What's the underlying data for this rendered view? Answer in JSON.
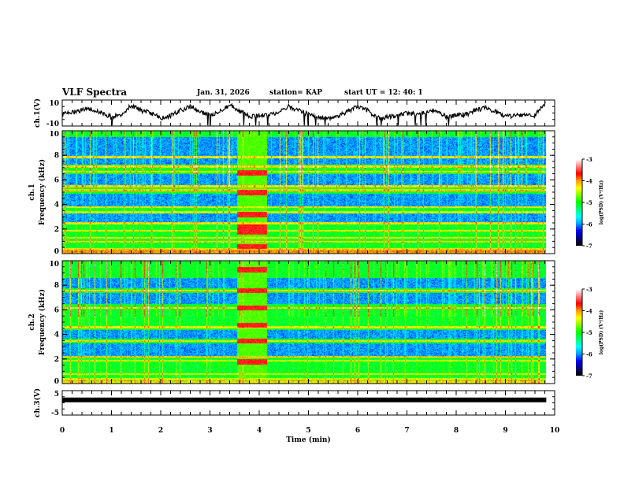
{
  "header": {
    "title": "VLF Spectra",
    "date": "Jan. 31, 2026",
    "station": "station= KAP",
    "start_time": "start  UT =   12: 40: 1"
  },
  "chart_data": [
    {
      "type": "line",
      "name": "ch1-voltage",
      "ylabel": "ch.1(V)",
      "ylim": [
        -10,
        10
      ],
      "yticks": [
        "10",
        "-10"
      ],
      "xlim": [
        0,
        10
      ],
      "data_end_min": 9.83,
      "description": "Noisy waveform oscillating mostly between about -7 and +7 V with periodic bursts",
      "approx_values": {
        "x": [
          0,
          0.3,
          0.5,
          0.8,
          1.0,
          1.2,
          1.4,
          1.6,
          1.8,
          2.0,
          2.2,
          2.4,
          2.6,
          2.8,
          3.0,
          3.2,
          3.4,
          3.6,
          3.8,
          4.0,
          4.2,
          4.4,
          4.6,
          4.8,
          5.0,
          5.2,
          5.4,
          5.6,
          5.8,
          6.0,
          6.2,
          6.4,
          6.6,
          6.8,
          7.0,
          7.2,
          7.4,
          7.6,
          7.8,
          8.0,
          8.2,
          8.4,
          8.6,
          8.8,
          9.0,
          9.2,
          9.4,
          9.6,
          9.8
        ],
        "y": [
          -1,
          1,
          4,
          0,
          -3,
          -1,
          6,
          2,
          0,
          -4,
          -2,
          2,
          5,
          1,
          -2,
          2,
          6,
          2,
          -3,
          -2,
          -1,
          1,
          5,
          2,
          -1,
          -3,
          -4,
          -2,
          1,
          5,
          2,
          -4,
          -3,
          -2,
          0,
          -1,
          1,
          2,
          -3,
          -2,
          -1,
          2,
          4,
          1,
          -3,
          -2,
          -1,
          -2,
          7
        ]
      }
    },
    {
      "type": "heatmap",
      "name": "ch1-spectrogram",
      "ylabel_line1": "ch.1",
      "ylabel_line2": "Frequency (kHz)",
      "ylim": [
        0,
        10
      ],
      "yticks": [
        "0",
        "2",
        "4",
        "6",
        "8",
        "10"
      ],
      "xlim": [
        0,
        10
      ],
      "data_end_min": 9.83,
      "colorbar": {
        "label": "log(PSD) (V²/Hz)",
        "range": [
          -7,
          -3
        ],
        "ticks": [
          "-3",
          "-4",
          "-5",
          "-6",
          "-7"
        ]
      },
      "features": {
        "burst_interval_min": [
          3.55,
          4.15
        ],
        "burst_bands_khz": [
          0.6,
          1.8,
          2.2,
          3.2,
          5.0,
          6.6
        ],
        "persistent_bands_khz": [
          0.3,
          1.0,
          1.3,
          1.9,
          2.5,
          3.4,
          3.8,
          5.2,
          5.5,
          6.7,
          7.1,
          7.9
        ],
        "quiet_bands_khz": [
          [
            2.6,
            3.3
          ],
          [
            3.9,
            4.9
          ],
          [
            5.6,
            6.5
          ],
          [
            7.3,
            7.8
          ],
          [
            8.0,
            9.5
          ]
        ]
      }
    },
    {
      "type": "heatmap",
      "name": "ch2-spectrogram",
      "ylabel_line1": "ch.2",
      "ylabel_line2": "Frequency (kHz)",
      "ylim": [
        0,
        10
      ],
      "yticks": [
        "0",
        "2",
        "4",
        "6",
        "8",
        "10"
      ],
      "xlim": [
        0,
        10
      ],
      "data_end_min": 9.83,
      "colorbar": {
        "label": "log(PSD) (V²/Hz)",
        "range": [
          -7,
          -3
        ],
        "ticks": [
          "-3",
          "-4",
          "-5",
          "-6",
          "-7"
        ]
      },
      "features": {
        "burst_interval_min": [
          3.55,
          4.15
        ],
        "burst_bands_khz": [
          1.8,
          3.5,
          4.8,
          6.2,
          7.6,
          9.3
        ],
        "persistent_bands_khz": [
          0.3,
          0.8,
          1.9,
          2.2,
          3.5,
          4.6,
          6.2,
          7.6
        ],
        "quiet_bands_khz": [
          [
            2.3,
            3.3
          ],
          [
            3.7,
            4.4
          ],
          [
            6.5,
            7.4
          ],
          [
            7.8,
            8.6
          ]
        ]
      }
    },
    {
      "type": "line",
      "name": "ch3-voltage",
      "ylabel": "ch.3(V)",
      "ylim": [
        -5,
        5
      ],
      "yticks": [
        "5",
        "-5"
      ],
      "xlim": [
        0,
        10
      ],
      "data_end_min": 9.83,
      "description": "Flat thick trace at about 1.2 V",
      "approx_values": {
        "x": [
          0,
          9.83
        ],
        "y": [
          1.2,
          1.2
        ]
      }
    }
  ],
  "xaxis": {
    "label": "Time (min)",
    "ticks": [
      "0",
      "1",
      "2",
      "3",
      "4",
      "5",
      "6",
      "7",
      "8",
      "9",
      "10"
    ]
  },
  "colors": {
    "colormap": [
      "#000000",
      "#000080",
      "#0000ff",
      "#00a0ff",
      "#00ffff",
      "#00ff80",
      "#00ff00",
      "#80ff00",
      "#ffff00",
      "#ffa000",
      "#ff0000",
      "#ff8080",
      "#ffffff"
    ]
  }
}
